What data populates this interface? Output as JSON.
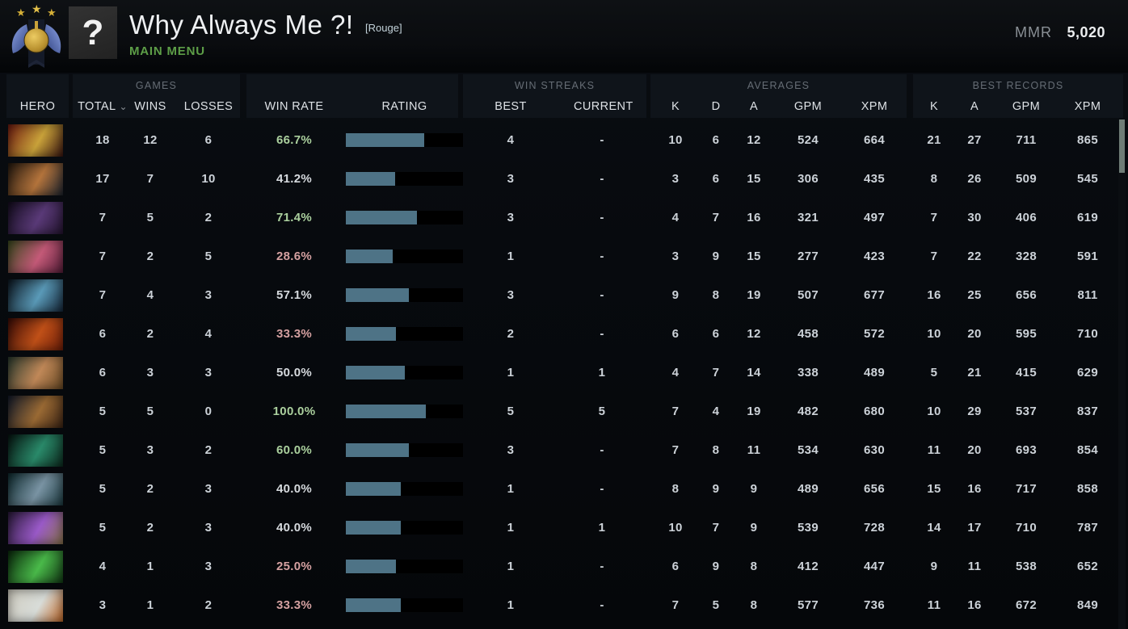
{
  "header": {
    "player_name": "Why Always Me ?!",
    "player_tag": "[Rouge]",
    "subtitle": "MAIN MENU",
    "avatar_glyph": "?",
    "mmr_label": "MMR",
    "mmr_value": "5,020"
  },
  "table": {
    "groups": {
      "games": "GAMES",
      "win_streaks": "WIN STREAKS",
      "averages": "AVERAGES",
      "best_records": "BEST RECORDS"
    },
    "columns": {
      "hero": "HERO",
      "total": "TOTAL",
      "wins": "WINS",
      "losses": "LOSSES",
      "win_rate": "WIN RATE",
      "rating": "RATING",
      "best": "BEST",
      "current": "CURRENT",
      "k": "K",
      "d": "D",
      "a": "A",
      "gpm": "GPM",
      "xpm": "XPM",
      "k2": "K",
      "a2": "A",
      "gpm2": "GPM",
      "xpm2": "XPM"
    },
    "sort_glyph": "⌄"
  },
  "colors": {
    "accent_green": "#5d9e47",
    "bar_fill": "#4e7386",
    "bar_track": "#000000",
    "rate_green": "#abd09e",
    "rate_red": "#d5a1a1",
    "rate_neutral": "#d6dade",
    "medal_gold": "#d4af37",
    "medal_wing_blue": "#6a86d8"
  },
  "rows": [
    {
      "total": "18",
      "wins": "12",
      "losses": "6",
      "win_rate": "66.7%",
      "win_rate_tone": "green",
      "rating_fill": 67,
      "streak_best": "4",
      "streak_current": "-",
      "avg_k": "10",
      "avg_d": "6",
      "avg_a": "12",
      "avg_gpm": "524",
      "avg_xpm": "664",
      "best_k": "21",
      "best_a": "27",
      "best_gpm": "711",
      "best_xpm": "865",
      "portrait": [
        "#6e1a10",
        "#c9a23a",
        "#3a1510"
      ]
    },
    {
      "total": "17",
      "wins": "7",
      "losses": "10",
      "win_rate": "41.2%",
      "win_rate_tone": "white",
      "rating_fill": 42,
      "streak_best": "3",
      "streak_current": "-",
      "avg_k": "3",
      "avg_d": "6",
      "avg_a": "15",
      "avg_gpm": "306",
      "avg_xpm": "435",
      "best_k": "8",
      "best_a": "26",
      "best_gpm": "509",
      "best_xpm": "545",
      "portrait": [
        "#23180f",
        "#b4743c",
        "#1e242e"
      ]
    },
    {
      "total": "7",
      "wins": "5",
      "losses": "2",
      "win_rate": "71.4%",
      "win_rate_tone": "green",
      "rating_fill": 61,
      "streak_best": "3",
      "streak_current": "-",
      "avg_k": "4",
      "avg_d": "7",
      "avg_a": "16",
      "avg_gpm": "321",
      "avg_xpm": "497",
      "best_k": "7",
      "best_a": "30",
      "best_gpm": "406",
      "best_xpm": "619",
      "portrait": [
        "#140c1e",
        "#5a3a78",
        "#241430"
      ]
    },
    {
      "total": "7",
      "wins": "2",
      "losses": "5",
      "win_rate": "28.6%",
      "win_rate_tone": "red",
      "rating_fill": 40,
      "streak_best": "1",
      "streak_current": "-",
      "avg_k": "3",
      "avg_d": "9",
      "avg_a": "15",
      "avg_gpm": "277",
      "avg_xpm": "423",
      "best_k": "7",
      "best_a": "22",
      "best_gpm": "328",
      "best_xpm": "591",
      "portrait": [
        "#3a4a1e",
        "#c45a78",
        "#581e3a"
      ]
    },
    {
      "total": "7",
      "wins": "4",
      "losses": "3",
      "win_rate": "57.1%",
      "win_rate_tone": "white",
      "rating_fill": 54,
      "streak_best": "3",
      "streak_current": "-",
      "avg_k": "9",
      "avg_d": "8",
      "avg_a": "19",
      "avg_gpm": "507",
      "avg_xpm": "677",
      "best_k": "16",
      "best_a": "25",
      "best_gpm": "656",
      "best_xpm": "811",
      "portrait": [
        "#0c1620",
        "#5a9ab8",
        "#16283a"
      ]
    },
    {
      "total": "6",
      "wins": "2",
      "losses": "4",
      "win_rate": "33.3%",
      "win_rate_tone": "red",
      "rating_fill": 43,
      "streak_best": "2",
      "streak_current": "-",
      "avg_k": "6",
      "avg_d": "6",
      "avg_a": "12",
      "avg_gpm": "458",
      "avg_xpm": "572",
      "best_k": "10",
      "best_a": "20",
      "best_gpm": "595",
      "best_xpm": "710",
      "portrait": [
        "#3a0c06",
        "#c05018",
        "#701e08"
      ]
    },
    {
      "total": "6",
      "wins": "3",
      "losses": "3",
      "win_rate": "50.0%",
      "win_rate_tone": "white",
      "rating_fill": 50,
      "streak_best": "1",
      "streak_current": "1",
      "avg_k": "4",
      "avg_d": "7",
      "avg_a": "14",
      "avg_gpm": "338",
      "avg_xpm": "489",
      "best_k": "5",
      "best_a": "21",
      "best_gpm": "415",
      "best_xpm": "629",
      "portrait": [
        "#2a3a2e",
        "#c08858",
        "#6a4a24"
      ]
    },
    {
      "total": "5",
      "wins": "5",
      "losses": "0",
      "win_rate": "100.0%",
      "win_rate_tone": "green",
      "rating_fill": 68,
      "streak_best": "5",
      "streak_current": "5",
      "avg_k": "7",
      "avg_d": "4",
      "avg_a": "19",
      "avg_gpm": "482",
      "avg_xpm": "680",
      "best_k": "10",
      "best_a": "29",
      "best_gpm": "537",
      "best_xpm": "837",
      "portrait": [
        "#121a2a",
        "#9a6a34",
        "#3c2414"
      ]
    },
    {
      "total": "5",
      "wins": "3",
      "losses": "2",
      "win_rate": "60.0%",
      "win_rate_tone": "green",
      "rating_fill": 54,
      "streak_best": "3",
      "streak_current": "-",
      "avg_k": "7",
      "avg_d": "8",
      "avg_a": "11",
      "avg_gpm": "534",
      "avg_xpm": "630",
      "best_k": "11",
      "best_a": "20",
      "best_gpm": "693",
      "best_xpm": "854",
      "portrait": [
        "#061410",
        "#2a8a6a",
        "#0c2a1e"
      ]
    },
    {
      "total": "5",
      "wins": "2",
      "losses": "3",
      "win_rate": "40.0%",
      "win_rate_tone": "white",
      "rating_fill": 47,
      "streak_best": "1",
      "streak_current": "-",
      "avg_k": "8",
      "avg_d": "9",
      "avg_a": "9",
      "avg_gpm": "489",
      "avg_xpm": "656",
      "best_k": "15",
      "best_a": "16",
      "best_gpm": "717",
      "best_xpm": "858",
      "portrait": [
        "#0e2a2e",
        "#7a94a4",
        "#1c3a40"
      ]
    },
    {
      "total": "5",
      "wins": "2",
      "losses": "3",
      "win_rate": "40.0%",
      "win_rate_tone": "white",
      "rating_fill": 47,
      "streak_best": "1",
      "streak_current": "1",
      "avg_k": "10",
      "avg_d": "7",
      "avg_a": "9",
      "avg_gpm": "539",
      "avg_xpm": "728",
      "best_k": "14",
      "best_a": "17",
      "best_gpm": "710",
      "best_xpm": "787",
      "portrait": [
        "#2a1a3a",
        "#9a5ac8",
        "#8a744c"
      ]
    },
    {
      "total": "4",
      "wins": "1",
      "losses": "3",
      "win_rate": "25.0%",
      "win_rate_tone": "red",
      "rating_fill": 43,
      "streak_best": "1",
      "streak_current": "-",
      "avg_k": "6",
      "avg_d": "9",
      "avg_a": "8",
      "avg_gpm": "412",
      "avg_xpm": "447",
      "best_k": "9",
      "best_a": "11",
      "best_gpm": "538",
      "best_xpm": "652",
      "portrait": [
        "#0a2a0c",
        "#4aba4a",
        "#123a14"
      ]
    },
    {
      "total": "3",
      "wins": "1",
      "losses": "2",
      "win_rate": "33.3%",
      "win_rate_tone": "red",
      "rating_fill": 47,
      "streak_best": "1",
      "streak_current": "-",
      "avg_k": "7",
      "avg_d": "5",
      "avg_a": "8",
      "avg_gpm": "577",
      "avg_xpm": "736",
      "best_k": "11",
      "best_a": "16",
      "best_gpm": "672",
      "best_xpm": "849",
      "portrait": [
        "#cfccc0",
        "#d8dcd8",
        "#c06828"
      ]
    }
  ]
}
